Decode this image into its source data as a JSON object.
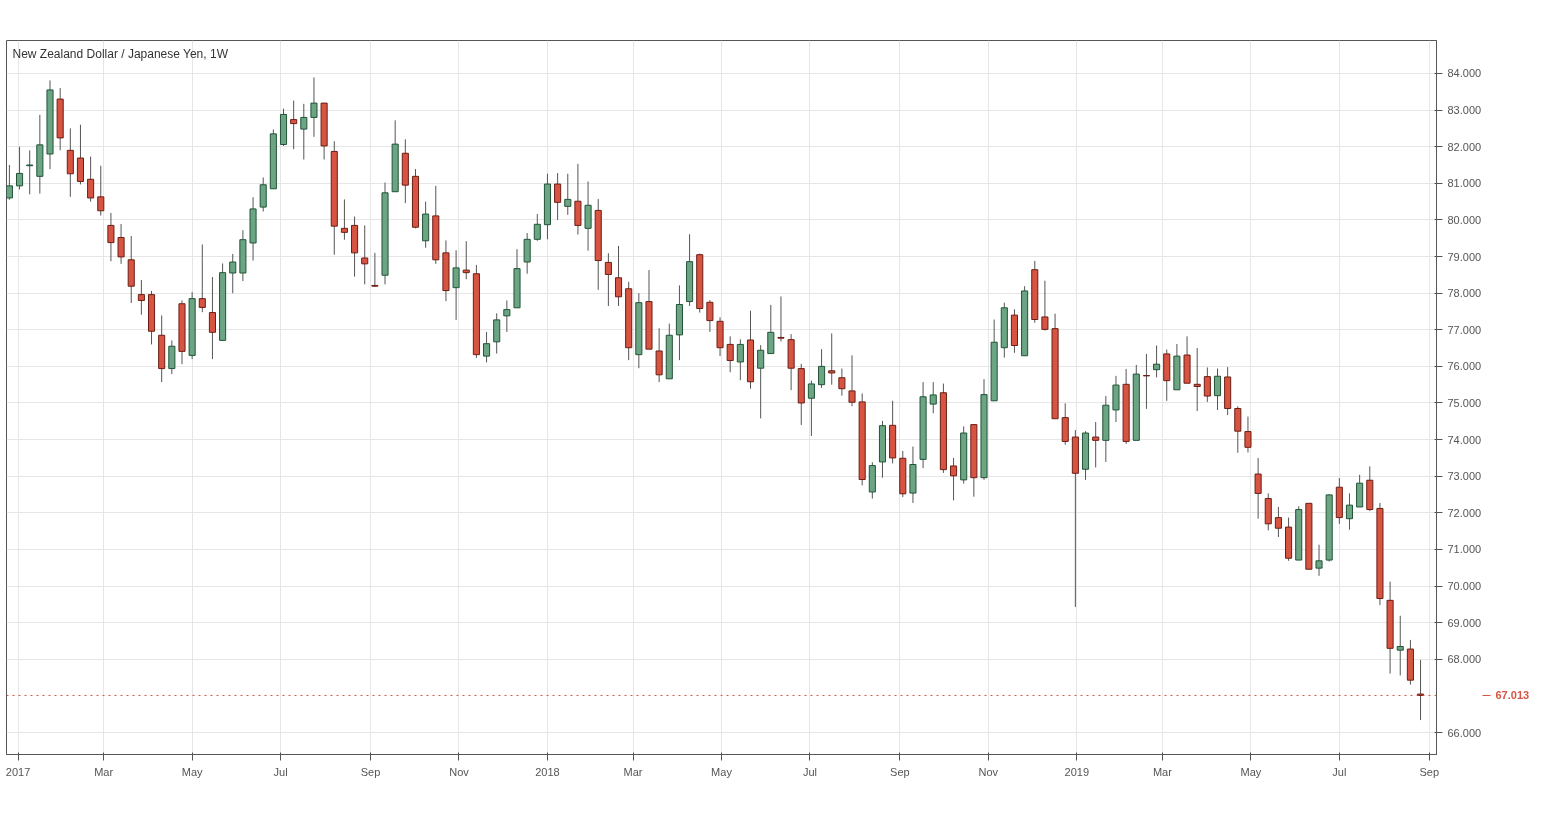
{
  "chart_data": {
    "type": "candlestick",
    "title": "New Zealand Dollar / Japanese Yen, 1W",
    "x": [
      "2016-12-26",
      "2017-01-02",
      "2017-01-09",
      "2017-01-16",
      "2017-01-23",
      "2017-01-30",
      "2017-02-06",
      "2017-02-13",
      "2017-02-20",
      "2017-02-27",
      "2017-03-06",
      "2017-03-13",
      "2017-03-20",
      "2017-03-27",
      "2017-04-03",
      "2017-04-10",
      "2017-04-17",
      "2017-04-24",
      "2017-05-01",
      "2017-05-08",
      "2017-05-15",
      "2017-05-22",
      "2017-05-29",
      "2017-06-05",
      "2017-06-12",
      "2017-06-19",
      "2017-06-26",
      "2017-07-03",
      "2017-07-10",
      "2017-07-17",
      "2017-07-24",
      "2017-07-31",
      "2017-08-07",
      "2017-08-14",
      "2017-08-21",
      "2017-08-28",
      "2017-09-04",
      "2017-09-11",
      "2017-09-18",
      "2017-09-25",
      "2017-10-02",
      "2017-10-09",
      "2017-10-16",
      "2017-10-23",
      "2017-10-30",
      "2017-11-06",
      "2017-11-13",
      "2017-11-20",
      "2017-11-27",
      "2017-12-04",
      "2017-12-11",
      "2017-12-18",
      "2017-12-25",
      "2018-01-01",
      "2018-01-08",
      "2018-01-15",
      "2018-01-22",
      "2018-01-29",
      "2018-02-05",
      "2018-02-12",
      "2018-02-19",
      "2018-02-26",
      "2018-03-05",
      "2018-03-12",
      "2018-03-19",
      "2018-03-26",
      "2018-04-02",
      "2018-04-09",
      "2018-04-16",
      "2018-04-23",
      "2018-04-30",
      "2018-05-07",
      "2018-05-14",
      "2018-05-21",
      "2018-05-28",
      "2018-06-04",
      "2018-06-11",
      "2018-06-18",
      "2018-06-25",
      "2018-07-02",
      "2018-07-09",
      "2018-07-16",
      "2018-07-23",
      "2018-07-30",
      "2018-08-06",
      "2018-08-13",
      "2018-08-20",
      "2018-08-27",
      "2018-09-03",
      "2018-09-10",
      "2018-09-17",
      "2018-09-24",
      "2018-10-01",
      "2018-10-08",
      "2018-10-15",
      "2018-10-22",
      "2018-10-29",
      "2018-11-05",
      "2018-11-12",
      "2018-11-19",
      "2018-11-26",
      "2018-12-03",
      "2018-12-10",
      "2018-12-17",
      "2018-12-24",
      "2018-12-31",
      "2019-01-07",
      "2019-01-14",
      "2019-01-21",
      "2019-01-28",
      "2019-02-04",
      "2019-02-11",
      "2019-02-18",
      "2019-02-25",
      "2019-03-04",
      "2019-03-11",
      "2019-03-18",
      "2019-03-25",
      "2019-04-01",
      "2019-04-08",
      "2019-04-15",
      "2019-04-22",
      "2019-04-29",
      "2019-05-06",
      "2019-05-13",
      "2019-05-20",
      "2019-05-27",
      "2019-06-03",
      "2019-06-10",
      "2019-06-17",
      "2019-06-24",
      "2019-07-01",
      "2019-07-08",
      "2019-07-15",
      "2019-07-22",
      "2019-07-29",
      "2019-08-05",
      "2019-08-12",
      "2019-08-19",
      "2019-08-26"
    ],
    "ohlc": [
      [
        80.6,
        81.5,
        80.55,
        80.93
      ],
      [
        80.93,
        82.0,
        80.83,
        81.27
      ],
      [
        81.48,
        81.9,
        80.7,
        81.5
      ],
      [
        81.19,
        82.87,
        80.72,
        82.05
      ],
      [
        81.8,
        83.81,
        81.39,
        83.55
      ],
      [
        83.3,
        83.6,
        81.9,
        82.24
      ],
      [
        81.9,
        82.5,
        80.63,
        81.26
      ],
      [
        81.69,
        82.6,
        80.97,
        81.05
      ],
      [
        81.11,
        81.73,
        80.5,
        80.6
      ],
      [
        80.63,
        81.48,
        80.12,
        80.25
      ],
      [
        79.85,
        80.19,
        78.87,
        79.38
      ],
      [
        79.52,
        79.89,
        78.8,
        78.99
      ],
      [
        78.91,
        79.56,
        77.73,
        78.19
      ],
      [
        77.96,
        78.36,
        77.41,
        77.8
      ],
      [
        77.96,
        78.06,
        76.6,
        76.96
      ],
      [
        76.85,
        77.39,
        75.57,
        75.94
      ],
      [
        75.94,
        76.71,
        75.79,
        76.55
      ],
      [
        77.71,
        77.8,
        76.06,
        76.41
      ],
      [
        76.3,
        78.03,
        76.2,
        77.85
      ],
      [
        77.85,
        79.33,
        77.48,
        77.61
      ],
      [
        77.47,
        78.44,
        76.2,
        76.93
      ],
      [
        76.71,
        78.81,
        76.71,
        78.56
      ],
      [
        78.55,
        79.07,
        78.0,
        78.85
      ],
      [
        78.55,
        79.72,
        78.33,
        79.46
      ],
      [
        79.37,
        80.62,
        78.89,
        80.3
      ],
      [
        80.35,
        81.16,
        80.23,
        80.96
      ],
      [
        80.85,
        82.47,
        80.85,
        82.35
      ],
      [
        82.06,
        83.04,
        82.02,
        82.88
      ],
      [
        82.74,
        83.26,
        81.93,
        82.63
      ],
      [
        82.48,
        83.17,
        81.65,
        82.8
      ],
      [
        82.8,
        83.89,
        82.27,
        83.19
      ],
      [
        83.19,
        83.19,
        81.65,
        82.02
      ],
      [
        81.87,
        82.15,
        79.05,
        79.83
      ],
      [
        79.77,
        80.56,
        79.46,
        79.66
      ],
      [
        79.85,
        80.09,
        78.45,
        79.1
      ],
      [
        78.96,
        79.85,
        78.24,
        78.8
      ],
      [
        78.21,
        79.1,
        78.17,
        78.19
      ],
      [
        78.49,
        81.02,
        78.24,
        80.74
      ],
      [
        80.77,
        82.72,
        80.77,
        82.07
      ],
      [
        81.82,
        82.2,
        80.46,
        80.95
      ],
      [
        81.19,
        81.39,
        79.77,
        79.8
      ],
      [
        79.43,
        80.5,
        79.24,
        80.16
      ],
      [
        80.11,
        80.93,
        78.8,
        78.91
      ],
      [
        79.1,
        79.44,
        77.78,
        78.07
      ],
      [
        78.15,
        79.17,
        77.27,
        78.69
      ],
      [
        78.63,
        79.42,
        78.38,
        78.56
      ],
      [
        78.53,
        78.77,
        76.23,
        76.32
      ],
      [
        76.28,
        76.94,
        76.11,
        76.62
      ],
      [
        76.67,
        77.45,
        76.35,
        77.27
      ],
      [
        77.38,
        77.8,
        76.94,
        77.55
      ],
      [
        77.6,
        79.2,
        77.6,
        78.67
      ],
      [
        78.85,
        79.64,
        78.53,
        79.47
      ],
      [
        79.47,
        80.16,
        79.43,
        79.88
      ],
      [
        79.87,
        81.26,
        79.47,
        80.98
      ],
      [
        80.98,
        81.28,
        80.0,
        80.48
      ],
      [
        80.37,
        81.26,
        80.14,
        80.56
      ],
      [
        80.51,
        81.53,
        79.6,
        79.85
      ],
      [
        79.77,
        81.05,
        79.16,
        80.4
      ],
      [
        80.26,
        80.57,
        78.09,
        78.89
      ],
      [
        78.84,
        79.09,
        77.65,
        78.51
      ],
      [
        78.42,
        79.29,
        77.65,
        77.9
      ],
      [
        78.12,
        78.31,
        76.17,
        76.51
      ],
      [
        76.32,
        78.0,
        75.95,
        77.74
      ],
      [
        77.77,
        78.63,
        76.47,
        76.47
      ],
      [
        76.42,
        77.04,
        75.57,
        75.77
      ],
      [
        75.66,
        77.17,
        75.66,
        76.85
      ],
      [
        76.86,
        78.21,
        76.17,
        77.69
      ],
      [
        77.77,
        79.61,
        77.65,
        78.86
      ],
      [
        79.05,
        79.08,
        77.47,
        77.58
      ],
      [
        77.75,
        77.81,
        76.94,
        77.25
      ],
      [
        77.23,
        77.34,
        76.28,
        76.51
      ],
      [
        76.6,
        76.82,
        75.84,
        76.16
      ],
      [
        76.12,
        76.74,
        75.62,
        76.6
      ],
      [
        76.72,
        77.52,
        75.39,
        75.58
      ],
      [
        75.95,
        76.58,
        74.58,
        76.44
      ],
      [
        76.35,
        77.68,
        76.35,
        76.93
      ],
      [
        76.79,
        77.91,
        76.68,
        76.77
      ],
      [
        76.73,
        76.88,
        75.35,
        75.95
      ],
      [
        75.94,
        76.07,
        74.4,
        75.0
      ],
      [
        75.13,
        75.61,
        74.1,
        75.52
      ],
      [
        75.5,
        76.47,
        75.41,
        76.0
      ],
      [
        75.88,
        76.9,
        75.5,
        75.82
      ],
      [
        75.69,
        75.94,
        75.2,
        75.39
      ],
      [
        75.33,
        76.3,
        74.91,
        75.02
      ],
      [
        75.03,
        75.26,
        72.75,
        72.91
      ],
      [
        72.57,
        73.38,
        72.39,
        73.29
      ],
      [
        73.39,
        74.51,
        72.96,
        74.38
      ],
      [
        74.39,
        75.06,
        73.35,
        73.5
      ],
      [
        73.49,
        73.69,
        72.43,
        72.52
      ],
      [
        72.54,
        73.81,
        72.27,
        73.32
      ],
      [
        73.46,
        75.57,
        73.22,
        75.17
      ],
      [
        74.97,
        75.57,
        74.72,
        75.22
      ],
      [
        75.28,
        75.53,
        73.09,
        73.18
      ],
      [
        73.28,
        73.5,
        72.34,
        73.01
      ],
      [
        72.9,
        74.36,
        72.8,
        74.18
      ],
      [
        74.41,
        74.41,
        72.44,
        72.96
      ],
      [
        72.96,
        75.65,
        72.9,
        75.23
      ],
      [
        75.06,
        77.28,
        75.06,
        76.66
      ],
      [
        76.51,
        77.74,
        76.24,
        77.6
      ],
      [
        77.4,
        77.56,
        76.37,
        76.57
      ],
      [
        76.29,
        78.19,
        76.29,
        78.06
      ],
      [
        78.64,
        78.88,
        77.19,
        77.28
      ],
      [
        77.35,
        78.34,
        76.98,
        77.01
      ],
      [
        77.03,
        77.44,
        74.57,
        74.57
      ],
      [
        74.6,
        74.99,
        73.86,
        73.95
      ],
      [
        74.07,
        74.26,
        69.43,
        73.08
      ],
      [
        73.19,
        74.23,
        72.9,
        74.18
      ],
      [
        74.07,
        74.48,
        73.24,
        73.98
      ],
      [
        73.98,
        75.19,
        73.39,
        74.94
      ],
      [
        74.81,
        75.74,
        74.48,
        75.49
      ],
      [
        75.51,
        75.93,
        73.88,
        73.95
      ],
      [
        73.98,
        76.04,
        73.98,
        75.79
      ],
      [
        75.75,
        76.34,
        74.84,
        75.74
      ],
      [
        75.91,
        76.57,
        75.7,
        76.06
      ],
      [
        76.34,
        76.46,
        75.06,
        75.61
      ],
      [
        75.36,
        76.61,
        75.36,
        76.28
      ],
      [
        76.31,
        76.82,
        75.54,
        75.54
      ],
      [
        75.51,
        76.5,
        74.78,
        75.45
      ],
      [
        75.72,
        75.97,
        75.03,
        75.19
      ],
      [
        75.2,
        75.94,
        74.81,
        75.73
      ],
      [
        75.71,
        75.98,
        74.67,
        74.85
      ],
      [
        74.85,
        74.91,
        73.64,
        74.23
      ],
      [
        74.22,
        74.63,
        73.65,
        73.79
      ],
      [
        73.06,
        73.5,
        71.84,
        72.53
      ],
      [
        72.39,
        72.53,
        71.52,
        71.7
      ],
      [
        71.87,
        72.16,
        71.34,
        71.58
      ],
      [
        71.61,
        71.87,
        70.69,
        70.76
      ],
      [
        70.71,
        72.18,
        70.71,
        72.09
      ],
      [
        72.26,
        72.26,
        70.46,
        70.46
      ],
      [
        70.49,
        71.13,
        70.28,
        70.69
      ],
      [
        70.71,
        72.51,
        70.67,
        72.49
      ],
      [
        72.7,
        72.95,
        71.7,
        71.87
      ],
      [
        71.84,
        72.53,
        71.54,
        72.21
      ],
      [
        72.16,
        73.04,
        72.16,
        72.81
      ],
      [
        72.89,
        73.27,
        72.05,
        72.09
      ],
      [
        72.12,
        72.27,
        69.48,
        69.66
      ],
      [
        69.61,
        70.12,
        67.61,
        68.3
      ],
      [
        68.25,
        69.19,
        67.56,
        68.35
      ],
      [
        68.28,
        68.53,
        67.31,
        67.43
      ],
      [
        67.05,
        67.98,
        66.34,
        67.013
      ]
    ],
    "colors": [
      "#6ba583",
      "#6ba583",
      "#6ba583",
      "#6ba583",
      "#6ba583",
      "#d75442",
      "#d75442",
      "#d75442",
      "#d75442",
      "#d75442",
      "#d75442",
      "#d75442",
      "#d75442",
      "#d75442",
      "#d75442",
      "#d75442",
      "#6ba583",
      "#d75442",
      "#6ba583",
      "#d75442",
      "#d75442",
      "#6ba583",
      "#6ba583",
      "#6ba583",
      "#6ba583",
      "#6ba583",
      "#6ba583",
      "#6ba583",
      "#d75442",
      "#6ba583",
      "#6ba583",
      "#d75442",
      "#d75442",
      "#d75442",
      "#d75442",
      "#d75442",
      "#d75442",
      "#6ba583",
      "#6ba583",
      "#d75442",
      "#d75442",
      "#6ba583",
      "#d75442",
      "#d75442",
      "#6ba583",
      "#d75442",
      "#d75442",
      "#6ba583",
      "#6ba583",
      "#6ba583",
      "#6ba583",
      "#6ba583",
      "#6ba583",
      "#6ba583",
      "#d75442",
      "#6ba583",
      "#d75442",
      "#6ba583",
      "#d75442",
      "#d75442",
      "#d75442",
      "#d75442",
      "#6ba583",
      "#d75442",
      "#d75442",
      "#6ba583",
      "#6ba583",
      "#6ba583",
      "#d75442",
      "#d75442",
      "#d75442",
      "#d75442",
      "#6ba583",
      "#d75442",
      "#6ba583",
      "#6ba583",
      "#d75442",
      "#d75442",
      "#d75442",
      "#6ba583",
      "#6ba583",
      "#d75442",
      "#d75442",
      "#d75442",
      "#d75442",
      "#6ba583",
      "#6ba583",
      "#d75442",
      "#d75442",
      "#6ba583",
      "#6ba583",
      "#6ba583",
      "#d75442",
      "#d75442",
      "#6ba583",
      "#d75442",
      "#6ba583",
      "#6ba583",
      "#6ba583",
      "#d75442",
      "#6ba583",
      "#d75442",
      "#d75442",
      "#d75442",
      "#d75442",
      "#d75442",
      "#6ba583",
      "#d75442",
      "#6ba583",
      "#6ba583",
      "#d75442",
      "#6ba583",
      "#d75442",
      "#6ba583",
      "#d75442",
      "#6ba583",
      "#d75442",
      "#d75442",
      "#d75442",
      "#6ba583",
      "#d75442",
      "#d75442",
      "#d75442",
      "#d75442",
      "#d75442",
      "#d75442",
      "#d75442",
      "#6ba583",
      "#d75442",
      "#6ba583",
      "#6ba583",
      "#d75442",
      "#6ba583",
      "#6ba583",
      "#d75442",
      "#d75442",
      "#d75442",
      "#6ba583",
      "#d75442",
      "#d75442"
    ],
    "xlim": [
      "2016-12-24",
      "2019-09-06"
    ],
    "xticks": [
      {
        "value": "2017-01-01",
        "label": "2017"
      },
      {
        "value": "2017-03-01",
        "label": "Mar"
      },
      {
        "value": "2017-05-01",
        "label": "May"
      },
      {
        "value": "2017-07-01",
        "label": "Jul"
      },
      {
        "value": "2017-09-01",
        "label": "Sep"
      },
      {
        "value": "2017-11-01",
        "label": "Nov"
      },
      {
        "value": "2018-01-01",
        "label": "2018"
      },
      {
        "value": "2018-03-01",
        "label": "Mar"
      },
      {
        "value": "2018-05-01",
        "label": "May"
      },
      {
        "value": "2018-07-01",
        "label": "Jul"
      },
      {
        "value": "2018-09-01",
        "label": "Sep"
      },
      {
        "value": "2018-11-01",
        "label": "Nov"
      },
      {
        "value": "2019-01-01",
        "label": "2019"
      },
      {
        "value": "2019-03-01",
        "label": "Mar"
      },
      {
        "value": "2019-05-01",
        "label": "May"
      },
      {
        "value": "2019-07-01",
        "label": "Jul"
      },
      {
        "value": "2019-09-01",
        "label": "Sep"
      }
    ],
    "ylim": [
      65.4,
      84.9
    ],
    "yticks": [
      {
        "value": 66,
        "label": "66.000"
      },
      {
        "value": 68,
        "label": "68.000"
      },
      {
        "value": 69,
        "label": "69.000"
      },
      {
        "value": 70,
        "label": "70.000"
      },
      {
        "value": 71,
        "label": "71.000"
      },
      {
        "value": 72,
        "label": "72.000"
      },
      {
        "value": 73,
        "label": "73.000"
      },
      {
        "value": 74,
        "label": "74.000"
      },
      {
        "value": 75,
        "label": "75.000"
      },
      {
        "value": 76,
        "label": "76.000"
      },
      {
        "value": 77,
        "label": "77.000"
      },
      {
        "value": 78,
        "label": "78.000"
      },
      {
        "value": 79,
        "label": "79.000"
      },
      {
        "value": 80,
        "label": "80.000"
      },
      {
        "value": 81,
        "label": "81.000"
      },
      {
        "value": 82,
        "label": "82.000"
      },
      {
        "value": 83,
        "label": "83.000"
      },
      {
        "value": 84,
        "label": "84.000"
      }
    ],
    "ref_lines": [
      {
        "axis": "y",
        "value": 67.013,
        "label": "67.013",
        "color": "#d75442",
        "line_style": "dotted"
      }
    ],
    "grid": true
  }
}
